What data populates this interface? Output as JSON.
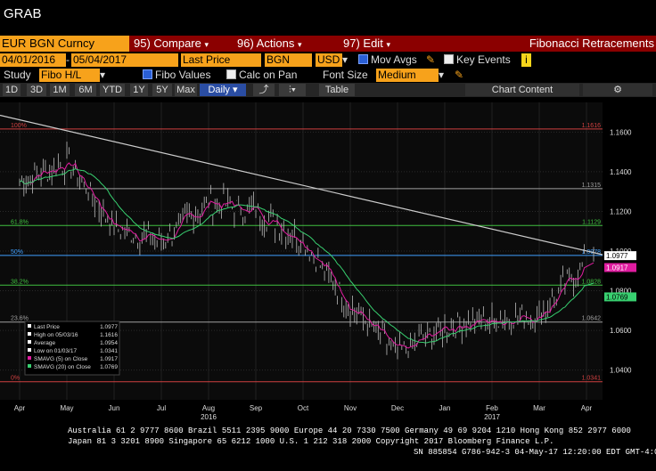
{
  "app_title": "GRAB",
  "toolbar": {
    "ticker": "EUR BGN Curncy",
    "compare": "95) Compare",
    "actions": "96) Actions",
    "edit": "97) Edit",
    "function_title": "Fibonacci Retracements"
  },
  "range_bar": {
    "start_date": "04/01/2016",
    "end_date": "05/04/2017",
    "field": "Last Price",
    "currency_pair": "BGN",
    "currency": "USD",
    "mov_avgs_label": "Mov Avgs",
    "mov_avgs_checked": true,
    "key_events_label": "Key Events",
    "key_events_checked": false
  },
  "study_bar": {
    "study_label": "Study",
    "study_value": "Fibo H/L",
    "fibo_values_label": "Fibo Values",
    "fibo_values_checked": true,
    "calc_on_pan_label": "Calc on Pan",
    "calc_on_pan_checked": false,
    "font_size_label": "Font Size",
    "font_size_value": "Medium"
  },
  "period_bar": {
    "periods": [
      "1D",
      "3D",
      "1M",
      "6M",
      "YTD",
      "1Y",
      "5Y",
      "Max"
    ],
    "frequency": "Daily",
    "table_label": "Table",
    "chart_content_label": "Chart Content"
  },
  "chart_data": {
    "type": "line",
    "title": "",
    "x_labels": [
      "Apr",
      "May",
      "Jun",
      "Jul",
      "Aug",
      "Sep",
      "Oct",
      "Nov",
      "Dec",
      "Jan",
      "Feb",
      "Mar",
      "Apr"
    ],
    "year_labels": [
      "2016",
      "2017"
    ],
    "y_ticks": [
      1.04,
      1.06,
      1.08,
      1.1,
      1.12,
      1.14,
      1.16
    ],
    "ylim": [
      1.025,
      1.175
    ],
    "fib_levels": [
      {
        "label": "100%",
        "value": 1.1616,
        "color": "#d04040"
      },
      {
        "label": "",
        "value": 1.1315,
        "color": "#a0a0a0"
      },
      {
        "label": "61.8%",
        "value": 1.1129,
        "color": "#40c040"
      },
      {
        "label": "50%",
        "value": 1.0978,
        "color": "#40a0ff"
      },
      {
        "label": "38.2%",
        "value": 1.0828,
        "color": "#40c040"
      },
      {
        "label": "23.6%",
        "value": 1.0642,
        "color": "#a0a0a0"
      },
      {
        "label": "0%",
        "value": 1.0341,
        "color": "#d04040"
      }
    ],
    "right_labels": [
      {
        "text": "1.0977",
        "value": 1.0977,
        "bg": "#ffffff",
        "fg": "#000000"
      },
      {
        "text": "1.0917",
        "value": 1.0917,
        "bg": "#e01ca0",
        "fg": "#ffffff"
      },
      {
        "text": "1.0769",
        "value": 1.0769,
        "bg": "#38d070",
        "fg": "#000000"
      }
    ],
    "legend": [
      {
        "label": "Last Price",
        "value": "1.0977",
        "color": "#ffffff"
      },
      {
        "label": "High on 05/03/16",
        "value": "1.1616",
        "color": "#ffffff"
      },
      {
        "label": "Average",
        "value": "1.0954",
        "color": "#ffffff"
      },
      {
        "label": "Low on 01/03/17",
        "value": "1.0341",
        "color": "#ffffff"
      },
      {
        "label": "SMAVG (5) on Close",
        "value": "1.0917",
        "color": "#e01ca0"
      },
      {
        "label": "SMAVG (20) on Close",
        "value": "1.0769",
        "color": "#38d070"
      }
    ],
    "price_monthly": [
      {
        "x": "Apr",
        "y": 1.135
      },
      {
        "x": "May",
        "y": 1.145
      },
      {
        "x": "Jun",
        "y": 1.112
      },
      {
        "x": "Jul",
        "y": 1.105
      },
      {
        "x": "Aug",
        "y": 1.125
      },
      {
        "x": "Sep",
        "y": 1.12
      },
      {
        "x": "Oct",
        "y": 1.105
      },
      {
        "x": "Nov",
        "y": 1.072
      },
      {
        "x": "Dec",
        "y": 1.048
      },
      {
        "x": "Jan",
        "y": 1.062
      },
      {
        "x": "Feb",
        "y": 1.065
      },
      {
        "x": "Mar",
        "y": 1.068
      },
      {
        "x": "Apr",
        "y": 1.095
      }
    ]
  },
  "footer": {
    "line1": "Australia 61 2 9777 8600 Brazil 5511 2395 9000 Europe 44 20 7330 7500 Germany 49 69 9204 1210 Hong Kong 852 2977 6000",
    "line2": "Japan 81 3 3201 8900        Singapore 65 6212 1000        U.S. 1 212 318 2000        Copyright 2017 Bloomberg Finance L.P.",
    "line3": "SN 885854 G786-942-3 04-May-17 12:20:00 EDT  GMT-4:00"
  }
}
